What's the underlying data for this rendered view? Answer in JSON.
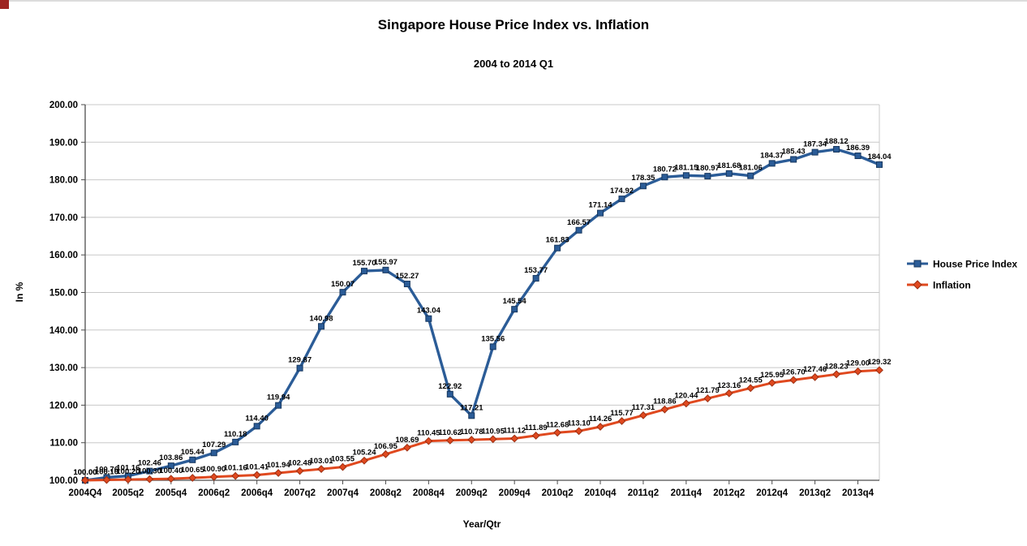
{
  "frame": {
    "top_border_color": "#dcdcdc",
    "corner_mark_color": "#9e2422"
  },
  "chart_data": {
    "type": "line",
    "title": "Singapore House Price Index vs. Inflation",
    "subtitle": "2004 to 2014 Q1",
    "xlabel": "Year/Qtr",
    "ylabel": "In %",
    "ylim": [
      100,
      200
    ],
    "ytick_step": 10,
    "ytick_labels": [
      "100.00",
      "110.00",
      "120.00",
      "130.00",
      "140.00",
      "150.00",
      "160.00",
      "170.00",
      "180.00",
      "190.00",
      "200.00"
    ],
    "grid": "horizontal",
    "legend_position": "right-middle",
    "xtick_every": 2,
    "xtick_labels": [
      "2004Q4",
      "2005q2",
      "2005q4",
      "2006q2",
      "2006q4",
      "2007q2",
      "2007q4",
      "2008q2",
      "2008q4",
      "2009q2",
      "2009q4",
      "2010q2",
      "2010q4",
      "2011q2",
      "2011q4",
      "2012q2",
      "2012q4",
      "2013q2",
      "2013q4"
    ],
    "x_categories": [
      "2004Q4",
      "2005Q1",
      "2005Q2",
      "2005Q3",
      "2005Q4",
      "2006Q1",
      "2006Q2",
      "2006Q3",
      "2006Q4",
      "2007Q1",
      "2007Q2",
      "2007Q3",
      "2007Q4",
      "2008Q1",
      "2008Q2",
      "2008Q3",
      "2008Q4",
      "2009Q1",
      "2009Q2",
      "2009Q3",
      "2009Q4",
      "2010Q1",
      "2010Q2",
      "2010Q3",
      "2010Q4",
      "2011Q1",
      "2011Q2",
      "2011Q3",
      "2011Q4",
      "2012Q1",
      "2012Q2",
      "2012Q3",
      "2012Q4",
      "2013Q1",
      "2013Q2",
      "2013Q3",
      "2013Q4",
      "2014Q1"
    ],
    "colors": {
      "grid": "#c8c8c8",
      "axis": "#4d4d4d",
      "text": "#000000",
      "background": "#ffffff"
    },
    "series": [
      {
        "id": "house-price-index",
        "name": "House Price Index",
        "marker": "square",
        "color": "#2b5c97",
        "edge_color": "#17375e",
        "values": [
          100.0,
          100.76,
          101.16,
          102.46,
          103.86,
          105.44,
          107.29,
          110.18,
          114.4,
          119.94,
          129.87,
          140.98,
          150.07,
          155.7,
          155.97,
          152.27,
          143.04,
          122.92,
          117.21,
          135.56,
          145.54,
          153.77,
          161.83,
          166.57,
          171.14,
          174.92,
          178.35,
          180.72,
          181.15,
          180.97,
          181.68,
          181.06,
          184.37,
          185.43,
          187.34,
          188.12,
          186.39,
          184.04
        ]
      },
      {
        "id": "inflation",
        "name": "Inflation",
        "marker": "diamond",
        "color": "#e0491f",
        "edge_color": "#9c2f12",
        "values": [
          100.0,
          100.1,
          100.2,
          100.3,
          100.4,
          100.65,
          100.9,
          101.16,
          101.41,
          101.94,
          102.48,
          103.01,
          103.55,
          105.24,
          106.95,
          108.69,
          110.45,
          110.62,
          110.78,
          110.95,
          111.12,
          111.89,
          112.68,
          113.1,
          114.26,
          115.77,
          117.31,
          118.86,
          120.44,
          121.79,
          123.16,
          124.55,
          125.95,
          126.7,
          127.46,
          128.23,
          129.0,
          129.32
        ]
      }
    ]
  }
}
